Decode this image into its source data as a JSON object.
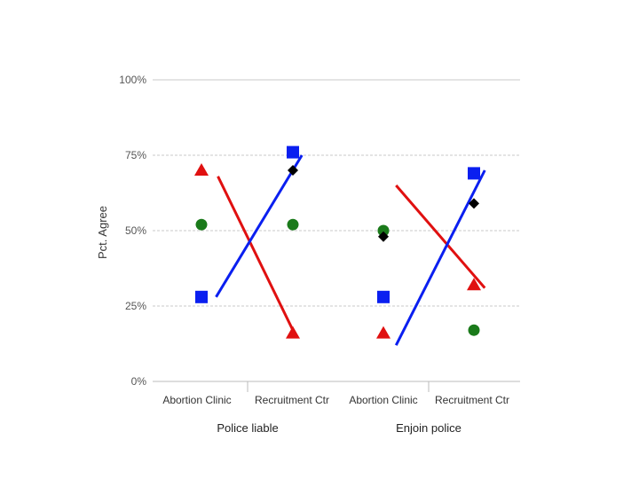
{
  "chart_data": {
    "type": "scatter",
    "title": "",
    "ylabel": "Pct. Agree",
    "ylim": [
      0,
      100
    ],
    "yticks": [
      {
        "value": 0,
        "label": "0%"
      },
      {
        "value": 25,
        "label": "25%"
      },
      {
        "value": 50,
        "label": "50%"
      },
      {
        "value": 75,
        "label": "75%"
      },
      {
        "value": 100,
        "label": "100%"
      }
    ],
    "categories": [
      "Abortion Clinic",
      "Recruitment Ctr",
      "Abortion Clinic",
      "Recruitment Ctr"
    ],
    "groups": [
      {
        "label": "Police liable",
        "categories": [
          0,
          1
        ]
      },
      {
        "label": "Enjoin police",
        "categories": [
          2,
          3
        ]
      }
    ],
    "colors": {
      "red": "#e01010",
      "blue": "#0a1ff0",
      "green": "#1a7a1a",
      "black": "#000000",
      "grid": "#c8c8c8"
    },
    "series": [
      {
        "name": "red-triangle",
        "marker": "triangle",
        "color": "#e01010",
        "values": [
          70,
          16,
          16,
          32
        ]
      },
      {
        "name": "green-circle",
        "marker": "circle",
        "color": "#1a7a1a",
        "values": [
          52,
          52,
          50,
          17
        ]
      },
      {
        "name": "blue-square",
        "marker": "square",
        "color": "#0a1ff0",
        "values": [
          28,
          76,
          28,
          69
        ]
      },
      {
        "name": "black-diamond",
        "marker": "diamond",
        "color": "#000000",
        "values": [
          null,
          70,
          48,
          59
        ]
      }
    ],
    "trend_lines": [
      {
        "name": "red-line-police-liable",
        "color": "#e01010",
        "from": {
          "cat": 1.18,
          "value": 68
        },
        "to": {
          "cat": 2.0,
          "value": 17
        }
      },
      {
        "name": "blue-line-police-liable",
        "color": "#0a1ff0",
        "from": {
          "cat": 1.16,
          "value": 28
        },
        "to": {
          "cat": 2.1,
          "value": 75
        }
      },
      {
        "name": "red-line-enjoin-police",
        "color": "#e01010",
        "from": {
          "cat": 3.14,
          "value": 65
        },
        "to": {
          "cat": 4.12,
          "value": 31
        }
      },
      {
        "name": "blue-line-enjoin-police",
        "color": "#0a1ff0",
        "from": {
          "cat": 3.14,
          "value": 12
        },
        "to": {
          "cat": 4.12,
          "value": 70
        }
      }
    ]
  }
}
